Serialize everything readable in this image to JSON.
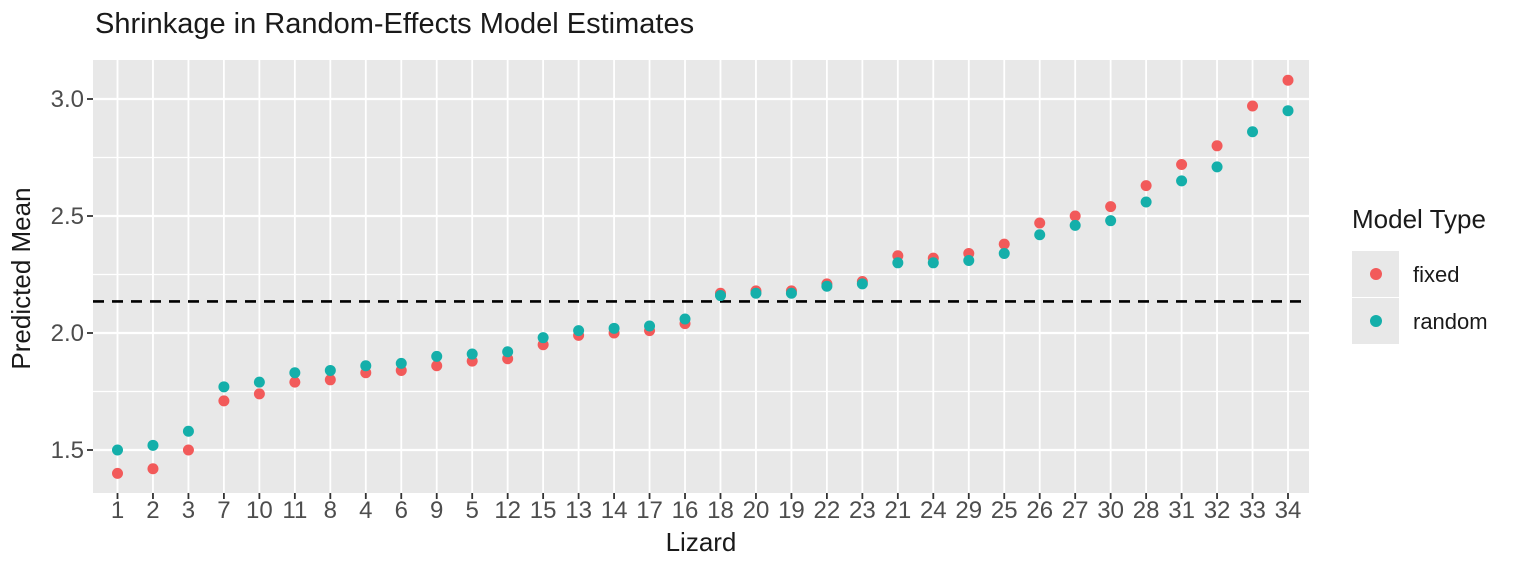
{
  "title": "Shrinkage in Random-Effects Model Estimates",
  "chart_data": {
    "type": "scatter",
    "title": "Shrinkage in Random-Effects Model Estimates",
    "xlabel": "Lizard",
    "ylabel": "Predicted Mean",
    "categories": [
      "1",
      "2",
      "3",
      "7",
      "10",
      "11",
      "8",
      "4",
      "6",
      "9",
      "5",
      "12",
      "15",
      "13",
      "14",
      "17",
      "16",
      "18",
      "20",
      "19",
      "22",
      "23",
      "21",
      "24",
      "29",
      "25",
      "26",
      "27",
      "30",
      "28",
      "31",
      "32",
      "33",
      "34"
    ],
    "series": [
      {
        "name": "fixed",
        "color": "#f25a5a",
        "values": [
          1.4,
          1.42,
          1.5,
          1.71,
          1.74,
          1.79,
          1.8,
          1.83,
          1.84,
          1.86,
          1.88,
          1.89,
          1.95,
          1.99,
          2.0,
          2.01,
          2.04,
          2.17,
          2.18,
          2.18,
          2.21,
          2.22,
          2.33,
          2.32,
          2.34,
          2.38,
          2.47,
          2.5,
          2.54,
          2.63,
          2.72,
          2.8,
          2.97,
          3.08
        ]
      },
      {
        "name": "random",
        "color": "#14afaa",
        "values": [
          1.5,
          1.52,
          1.58,
          1.77,
          1.79,
          1.83,
          1.84,
          1.86,
          1.87,
          1.9,
          1.91,
          1.92,
          1.98,
          2.01,
          2.02,
          2.03,
          2.06,
          2.16,
          2.17,
          2.17,
          2.2,
          2.21,
          2.3,
          2.3,
          2.31,
          2.34,
          2.42,
          2.46,
          2.48,
          2.56,
          2.65,
          2.71,
          2.86,
          2.95
        ]
      }
    ],
    "yticks": [
      1.5,
      2.0,
      2.5,
      3.0
    ],
    "ytick_labels": [
      "1.5",
      "2.0",
      "2.5",
      "3.0"
    ],
    "minor_yticks": [
      1.75,
      2.25,
      2.75
    ],
    "ylim": [
      1.32,
      3.17
    ],
    "reference_line": {
      "value": 2.135,
      "style": "dashed",
      "color": "#000000"
    },
    "legend": {
      "title": "Model Type",
      "position": "right"
    },
    "grid": true,
    "panel_background": "#e8e8e8",
    "grid_color": "#ffffff",
    "tick_label_color": "#4d4d4d",
    "tick_mark_color": "#333333"
  }
}
